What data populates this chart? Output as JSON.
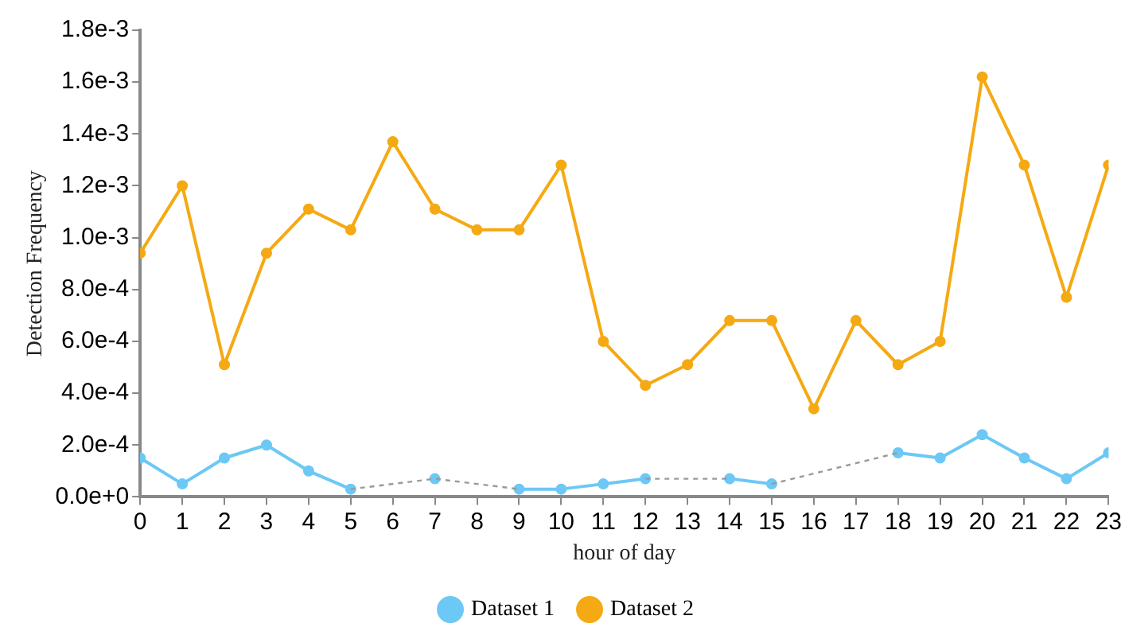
{
  "chart_data": {
    "type": "line",
    "xlabel": "hour of day",
    "ylabel": "Detection Frequency",
    "x": [
      0,
      1,
      2,
      3,
      4,
      5,
      6,
      7,
      8,
      9,
      10,
      11,
      12,
      13,
      14,
      15,
      16,
      17,
      18,
      19,
      20,
      21,
      22,
      23
    ],
    "series": [
      {
        "name": "Dataset 1",
        "color": "#6cc8f5",
        "values": [
          0.00015,
          5e-05,
          0.00015,
          0.0002,
          0.0001,
          3e-05,
          null,
          7e-05,
          null,
          3e-05,
          3e-05,
          5e-05,
          7e-05,
          null,
          7e-05,
          5e-05,
          null,
          null,
          0.00017,
          0.00015,
          0.00024,
          0.00015,
          7e-05,
          0.00017
        ]
      },
      {
        "color": "#9a9a9a",
        "line_style": "dashed",
        "marker": "none",
        "x": [
          5,
          7,
          9,
          10,
          12,
          14,
          14.5,
          15,
          18
        ],
        "values": [
          3e-05,
          7e-05,
          3e-05,
          null,
          7e-05,
          7e-05,
          null,
          5e-05,
          0.00017
        ]
      },
      {
        "name": "Dataset 2",
        "color": "#f5a912",
        "values": [
          0.00094,
          0.0012,
          0.00051,
          0.00094,
          0.00111,
          0.00103,
          0.00137,
          0.00111,
          0.00103,
          0.00103,
          0.00128,
          0.0006,
          0.00043,
          0.00051,
          0.00068,
          0.00068,
          0.00034,
          0.00068,
          0.00051,
          0.0006,
          0.00162,
          0.00128,
          0.00077,
          0.00128
        ]
      }
    ],
    "xlim": [
      0,
      23
    ],
    "xticks": [
      0,
      1,
      2,
      3,
      4,
      5,
      6,
      7,
      8,
      9,
      10,
      11,
      12,
      13,
      14,
      15,
      16,
      17,
      18,
      19,
      20,
      21,
      22,
      23
    ],
    "ylim": [
      0,
      0.0018
    ],
    "yticks": [
      {
        "value": 0,
        "label": "0.0e+0"
      },
      {
        "value": 0.0002,
        "label": "2.0e-4"
      },
      {
        "value": 0.0004,
        "label": "4.0e-4"
      },
      {
        "value": 0.0006,
        "label": "6.0e-4"
      },
      {
        "value": 0.0008,
        "label": "8.0e-4"
      },
      {
        "value": 0.001,
        "label": "1.0e-3"
      },
      {
        "value": 0.0012,
        "label": "1.2e-3"
      },
      {
        "value": 0.0014,
        "label": "1.4e-3"
      },
      {
        "value": 0.0016,
        "label": "1.6e-3"
      },
      {
        "value": 0.0018,
        "label": "1.8e-3"
      }
    ],
    "grid": false,
    "legend": "bottom",
    "marker": "circle",
    "line_style": "solid"
  }
}
